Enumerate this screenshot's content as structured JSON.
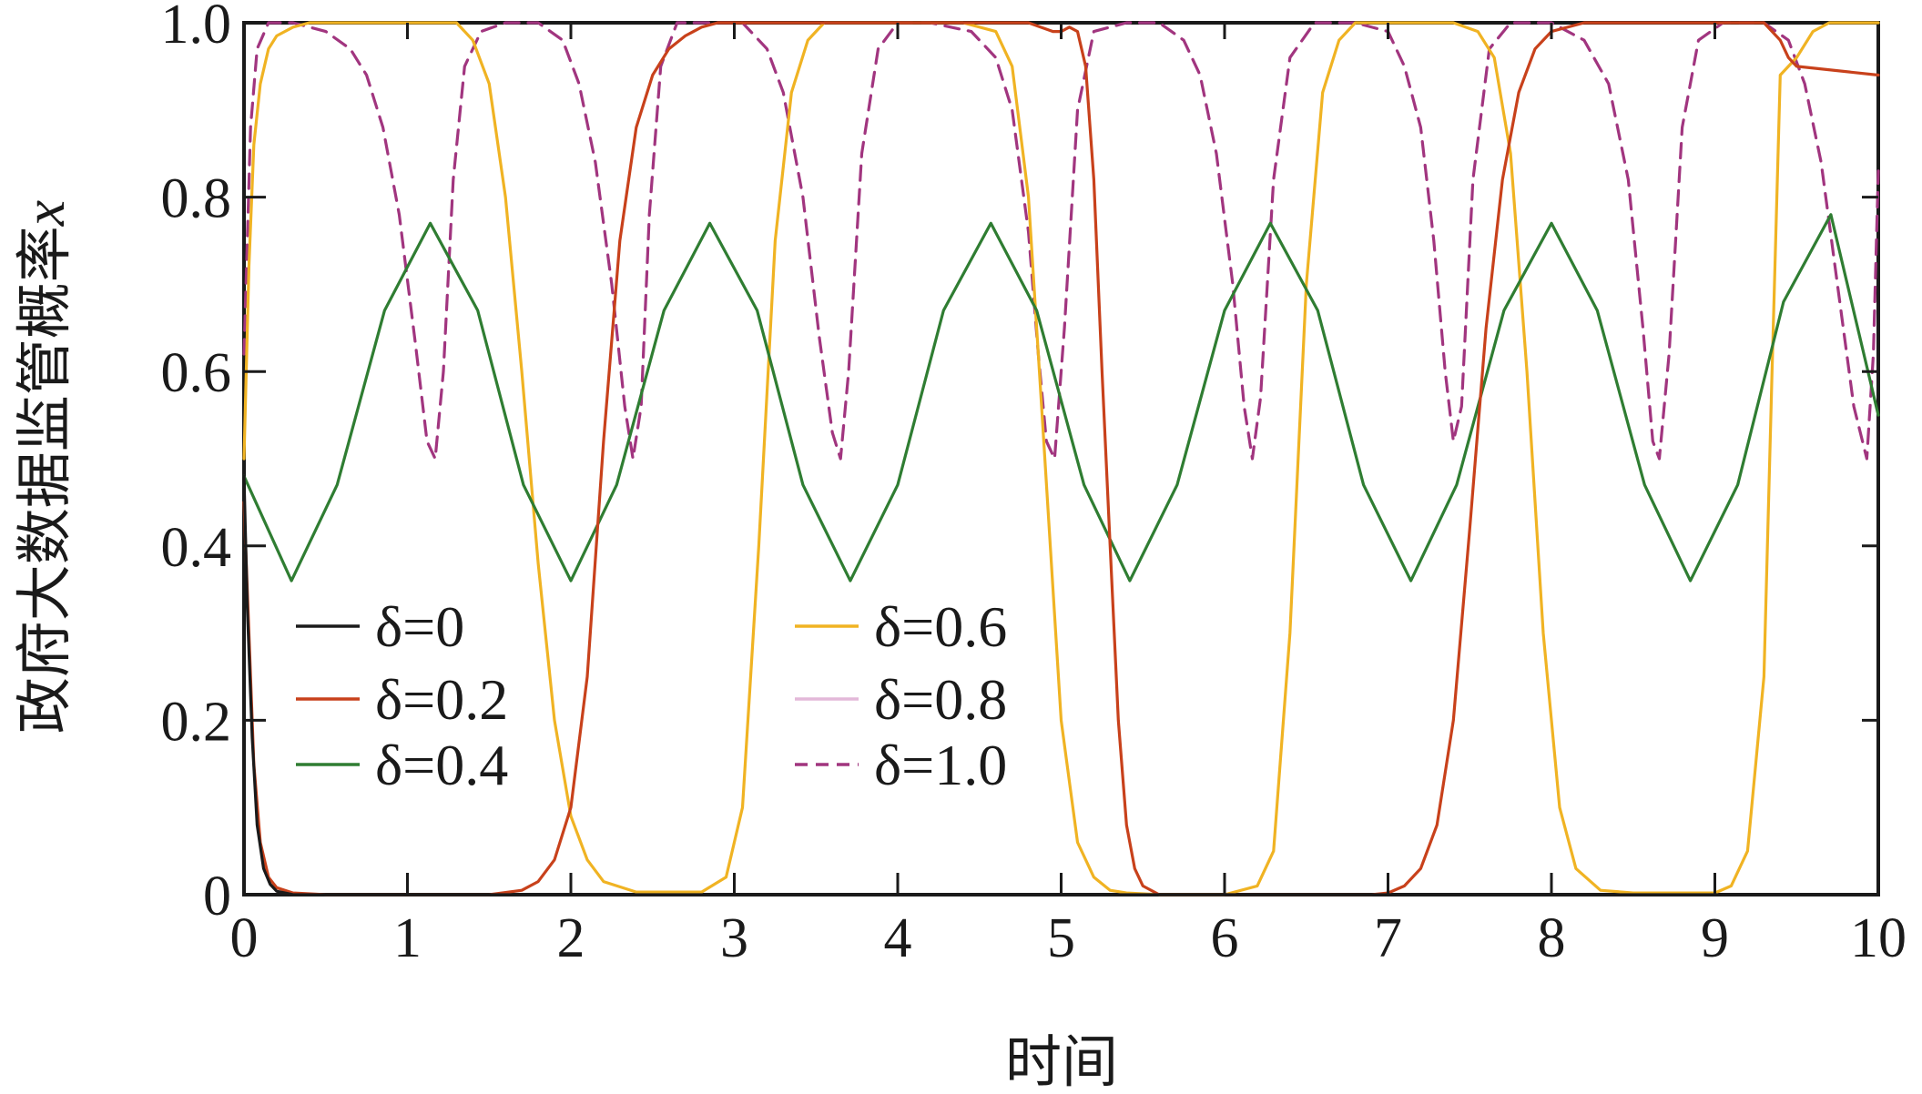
{
  "chart_data": {
    "type": "line",
    "title": "",
    "xlabel": "时间",
    "ylabel": "政府大数据监管概率x",
    "xlim": [
      0,
      10
    ],
    "ylim": [
      0,
      1
    ],
    "xticks": [
      "0",
      "1",
      "2",
      "3",
      "4",
      "5",
      "6",
      "7",
      "8",
      "9",
      "10"
    ],
    "yticks": [
      "0",
      "0.2",
      "0.4",
      "0.6",
      "0.8",
      "1.0"
    ],
    "grid": false,
    "legend_position": "lower-left",
    "series": [
      {
        "name": "δ=0",
        "color": "#1a1a1a",
        "dash": "solid",
        "x": [
          0,
          0.02,
          0.05,
          0.08,
          0.12,
          0.16,
          0.2,
          0.3,
          0.5,
          10
        ],
        "y": [
          0.48,
          0.33,
          0.18,
          0.08,
          0.03,
          0.012,
          0.004,
          0.0,
          0.0,
          0.0
        ]
      },
      {
        "name": "δ=0.2",
        "color": "#c8411b",
        "dash": "solid",
        "x": [
          0,
          0.03,
          0.06,
          0.1,
          0.15,
          0.2,
          0.3,
          0.5,
          1.0,
          1.5,
          1.7,
          1.8,
          1.9,
          2.0,
          2.1,
          2.2,
          2.3,
          2.4,
          2.5,
          2.6,
          2.7,
          2.8,
          2.9,
          3.0,
          3.5,
          4.0,
          4.5,
          4.8,
          4.95,
          5.0,
          5.05,
          5.1,
          5.15,
          5.2,
          5.25,
          5.3,
          5.35,
          5.4,
          5.45,
          5.5,
          5.6,
          5.8,
          6.2,
          6.6,
          6.9,
          7.0,
          7.1,
          7.2,
          7.3,
          7.4,
          7.5,
          7.6,
          7.7,
          7.8,
          7.9,
          8.0,
          8.2,
          8.5,
          9.0,
          9.3,
          9.4,
          9.45,
          9.5,
          10.0
        ],
        "y": [
          0.45,
          0.3,
          0.15,
          0.06,
          0.02,
          0.008,
          0.002,
          0.0,
          0.0,
          0.0,
          0.005,
          0.015,
          0.04,
          0.1,
          0.25,
          0.52,
          0.75,
          0.88,
          0.94,
          0.97,
          0.985,
          0.995,
          1.0,
          1.0,
          1.0,
          1.0,
          1.0,
          1.0,
          0.99,
          0.99,
          0.995,
          0.99,
          0.95,
          0.82,
          0.6,
          0.4,
          0.2,
          0.08,
          0.03,
          0.01,
          0.0,
          0.0,
          0.0,
          0.0,
          0.0,
          0.002,
          0.01,
          0.03,
          0.08,
          0.2,
          0.42,
          0.65,
          0.82,
          0.92,
          0.97,
          0.99,
          1.0,
          1.0,
          1.0,
          1.0,
          0.98,
          0.96,
          0.95,
          0.94
        ]
      },
      {
        "name": "δ=0.4",
        "color": "#2f7d32",
        "dash": "solid",
        "x": [
          0,
          0.29,
          0.57,
          0.86,
          1.14,
          1.43,
          1.71,
          2.0,
          2.28,
          2.57,
          2.85,
          3.14,
          3.42,
          3.71,
          4.0,
          4.28,
          4.57,
          4.85,
          5.14,
          5.42,
          5.71,
          6.0,
          6.28,
          6.57,
          6.85,
          7.14,
          7.42,
          7.71,
          8.0,
          8.28,
          8.57,
          8.85,
          9.14,
          9.42,
          9.71,
          10.0
        ],
        "y": [
          0.48,
          0.36,
          0.47,
          0.67,
          0.77,
          0.67,
          0.47,
          0.36,
          0.47,
          0.67,
          0.77,
          0.67,
          0.47,
          0.36,
          0.47,
          0.67,
          0.77,
          0.67,
          0.47,
          0.36,
          0.47,
          0.67,
          0.77,
          0.67,
          0.47,
          0.36,
          0.47,
          0.67,
          0.77,
          0.67,
          0.47,
          0.36,
          0.47,
          0.68,
          0.78,
          0.55
        ]
      },
      {
        "name": "δ=0.6",
        "color": "#f0b323",
        "dash": "solid",
        "x": [
          0,
          0.03,
          0.06,
          0.1,
          0.15,
          0.2,
          0.3,
          0.4,
          0.6,
          1.0,
          1.3,
          1.4,
          1.5,
          1.6,
          1.7,
          1.8,
          1.9,
          2.0,
          2.1,
          2.2,
          2.4,
          2.8,
          2.95,
          3.05,
          3.15,
          3.25,
          3.35,
          3.45,
          3.55,
          3.7,
          4.0,
          4.4,
          4.6,
          4.7,
          4.8,
          4.9,
          5.0,
          5.1,
          5.2,
          5.3,
          5.4,
          5.6,
          6.0,
          6.2,
          6.3,
          6.4,
          6.5,
          6.6,
          6.7,
          6.8,
          7.0,
          7.2,
          7.4,
          7.55,
          7.65,
          7.75,
          7.85,
          7.95,
          8.05,
          8.15,
          8.3,
          8.5,
          9.0,
          9.1,
          9.2,
          9.3,
          9.35,
          9.4,
          9.45,
          9.5,
          9.6,
          9.7,
          9.8,
          10.0
        ],
        "y": [
          0.5,
          0.72,
          0.86,
          0.93,
          0.97,
          0.985,
          0.995,
          1.0,
          1.0,
          1.0,
          1.0,
          0.98,
          0.93,
          0.8,
          0.6,
          0.38,
          0.2,
          0.09,
          0.04,
          0.015,
          0.003,
          0.003,
          0.02,
          0.1,
          0.4,
          0.75,
          0.92,
          0.98,
          1.0,
          1.0,
          1.0,
          1.0,
          0.99,
          0.95,
          0.8,
          0.5,
          0.2,
          0.06,
          0.02,
          0.005,
          0.002,
          0.0,
          0.0,
          0.01,
          0.05,
          0.3,
          0.7,
          0.92,
          0.98,
          1.0,
          1.0,
          1.0,
          1.0,
          0.99,
          0.96,
          0.85,
          0.6,
          0.3,
          0.1,
          0.03,
          0.005,
          0.002,
          0.002,
          0.01,
          0.05,
          0.25,
          0.6,
          0.94,
          0.95,
          0.96,
          0.99,
          1.0,
          1.0,
          1.0
        ]
      },
      {
        "name": "δ=0.8",
        "color": "#e3b8d9",
        "dash": "solid",
        "x": [],
        "y": []
      },
      {
        "name": "δ=1.0",
        "color": "#a1357f",
        "dash": "dashed",
        "x": [
          0,
          0.04,
          0.08,
          0.15,
          0.3,
          0.5,
          0.65,
          0.75,
          0.85,
          0.95,
          1.05,
          1.12,
          1.17,
          1.22,
          1.28,
          1.35,
          1.45,
          1.6,
          1.8,
          1.95,
          2.05,
          2.15,
          2.25,
          2.33,
          2.38,
          2.43,
          2.48,
          2.55,
          2.65,
          2.8,
          3.05,
          3.2,
          3.3,
          3.42,
          3.52,
          3.6,
          3.65,
          3.7,
          3.78,
          3.88,
          4.0,
          4.2,
          4.45,
          4.6,
          4.7,
          4.8,
          4.86,
          4.91,
          4.96,
          5.02,
          5.1,
          5.2,
          5.4,
          5.6,
          5.75,
          5.85,
          5.95,
          6.05,
          6.12,
          6.17,
          6.22,
          6.3,
          6.4,
          6.55,
          6.8,
          7.0,
          7.1,
          7.2,
          7.28,
          7.35,
          7.4,
          7.45,
          7.52,
          7.62,
          7.75,
          8.0,
          8.2,
          8.35,
          8.47,
          8.56,
          8.62,
          8.66,
          8.72,
          8.8,
          8.9,
          9.05,
          9.3,
          9.45,
          9.55,
          9.65,
          9.75,
          9.85,
          9.93,
          9.97,
          10.0
        ],
        "y": [
          0.62,
          0.88,
          0.97,
          1.0,
          1.0,
          0.99,
          0.97,
          0.94,
          0.88,
          0.78,
          0.63,
          0.52,
          0.5,
          0.6,
          0.82,
          0.95,
          0.99,
          1.0,
          1.0,
          0.98,
          0.93,
          0.84,
          0.7,
          0.56,
          0.5,
          0.56,
          0.78,
          0.95,
          1.0,
          1.0,
          1.0,
          0.97,
          0.92,
          0.8,
          0.64,
          0.53,
          0.5,
          0.6,
          0.85,
          0.97,
          1.0,
          1.0,
          0.99,
          0.96,
          0.9,
          0.76,
          0.62,
          0.52,
          0.5,
          0.65,
          0.9,
          0.99,
          1.0,
          1.0,
          0.98,
          0.94,
          0.85,
          0.7,
          0.56,
          0.5,
          0.57,
          0.82,
          0.96,
          1.0,
          1.0,
          0.99,
          0.95,
          0.88,
          0.75,
          0.6,
          0.52,
          0.56,
          0.82,
          0.97,
          1.0,
          1.0,
          0.98,
          0.93,
          0.82,
          0.65,
          0.52,
          0.5,
          0.62,
          0.88,
          0.98,
          1.0,
          1.0,
          0.98,
          0.93,
          0.84,
          0.7,
          0.56,
          0.5,
          0.62,
          0.83
        ]
      }
    ]
  }
}
